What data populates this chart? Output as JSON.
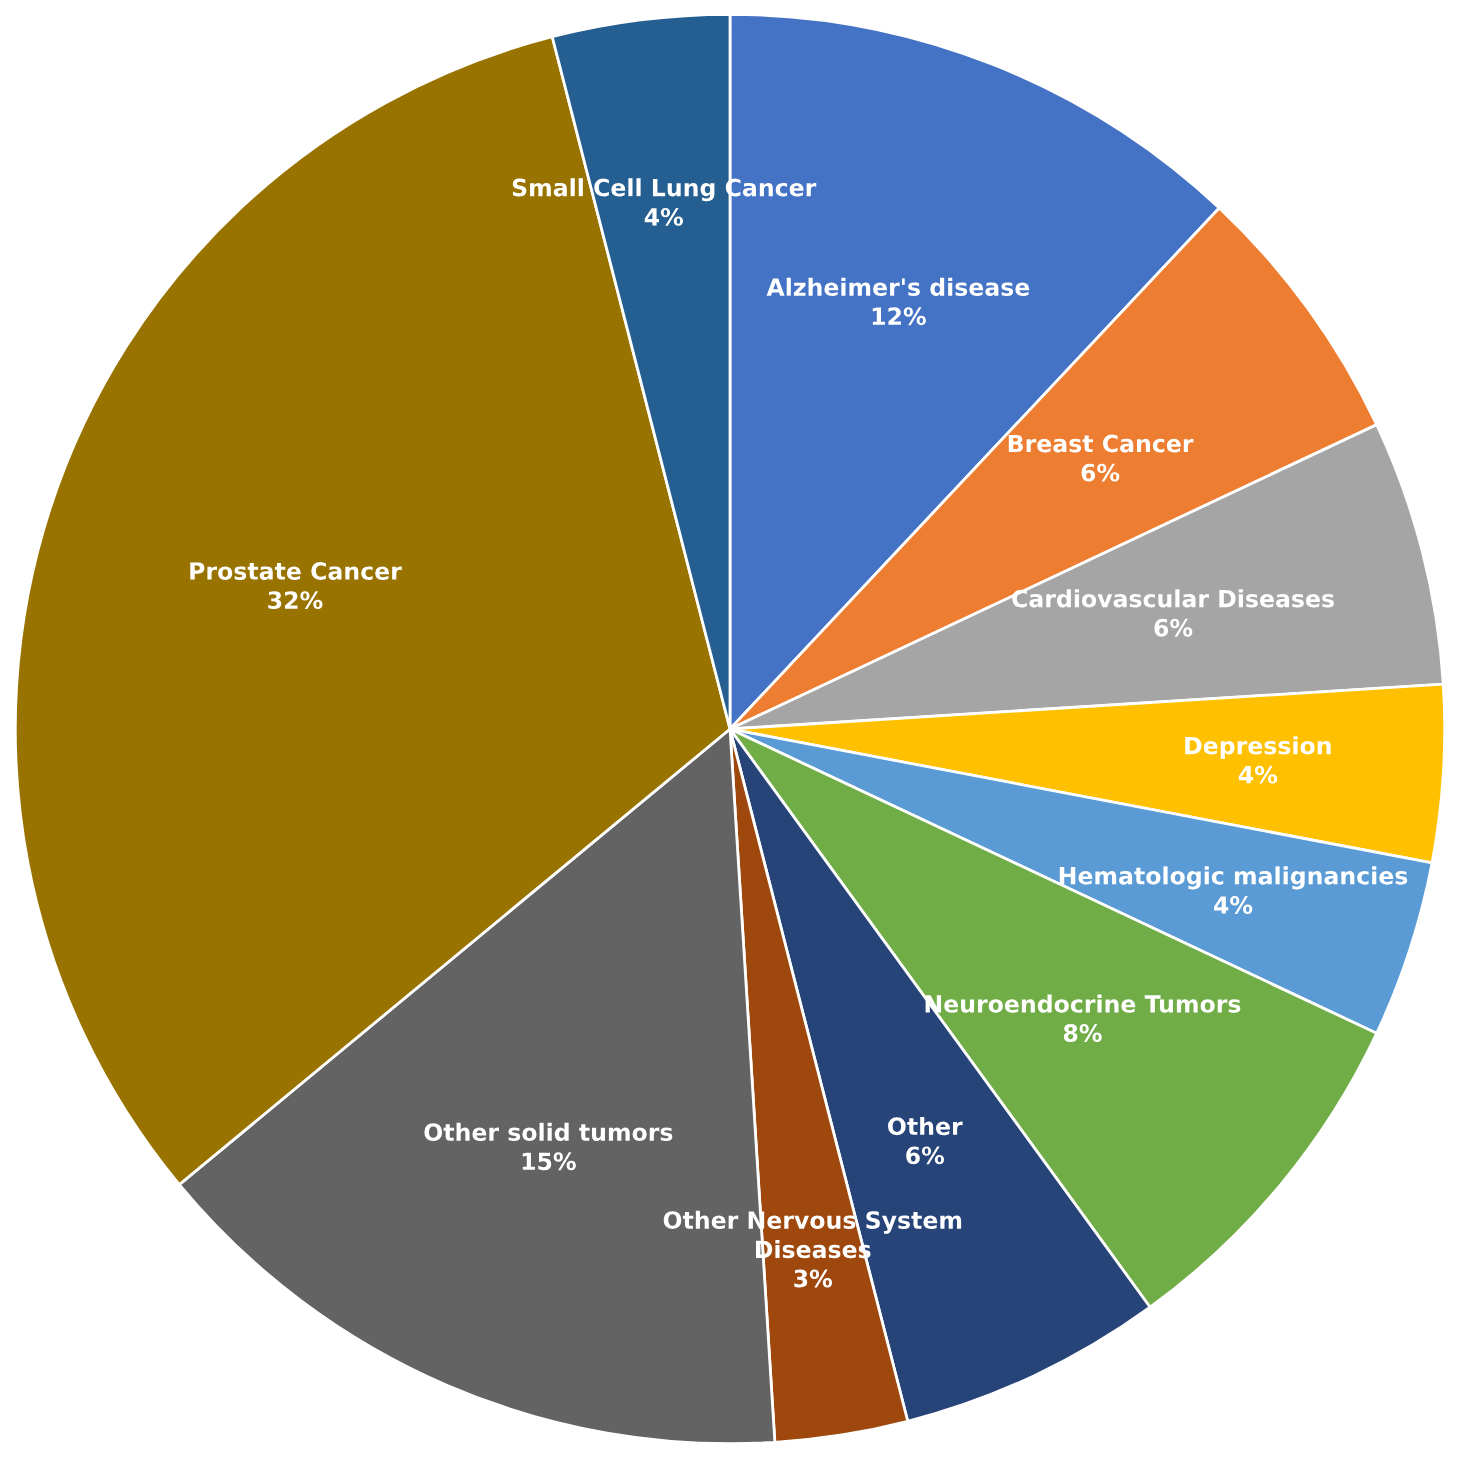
{
  "chart_data": {
    "type": "pie",
    "categories": [
      "Alzheimer's disease",
      "Breast Cancer",
      "Cardiovascular Diseases",
      "Depression",
      "Hematologic malignancies",
      "Neuroendocrine Tumors",
      "Other",
      "Other Nervous System\nDiseases",
      "Other solid tumors",
      "Prostate Cancer",
      "Small Cell Lung Cancer"
    ],
    "values": [
      12,
      6,
      6,
      4,
      4,
      8,
      6,
      3,
      15,
      32,
      4
    ],
    "colors": [
      "#4472c4",
      "#ed7d31",
      "#a5a5a5",
      "#ffc000",
      "#5b9bd5",
      "#70ad47",
      "#264478",
      "#9e480e",
      "#636363",
      "#997300",
      "#255e91"
    ],
    "value_labels": [
      "12%",
      "6%",
      "6%",
      "4%",
      "4%",
      "8%",
      "6%",
      "3%",
      "15%",
      "32%",
      "4%"
    ]
  }
}
